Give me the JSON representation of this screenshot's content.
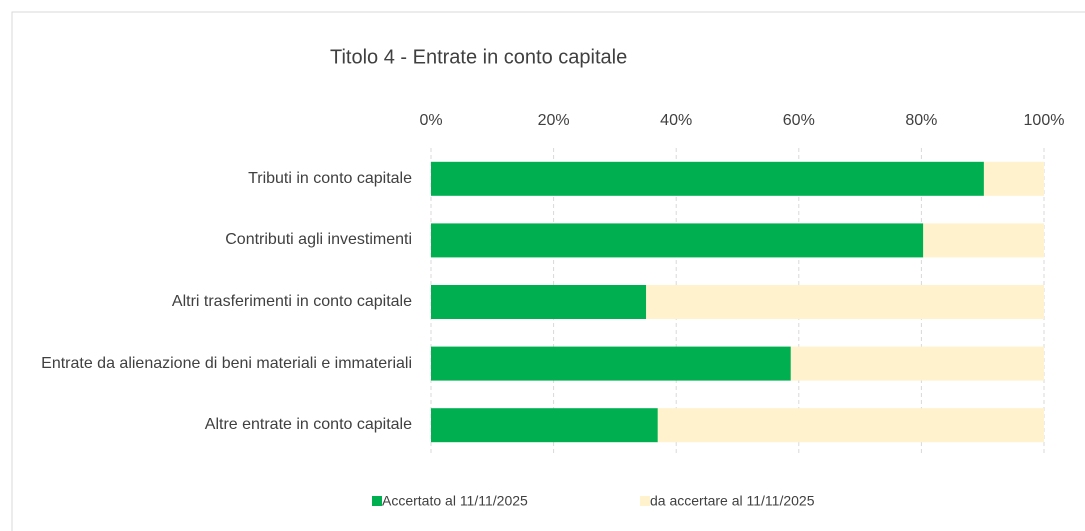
{
  "chart_data": {
    "type": "stacked_barh",
    "title": "Titolo 4 - Entrate in conto capitale",
    "categories": [
      "Tributi in conto capitale",
      "Contributi agli investimenti",
      "Altri trasferimenti in conto capitale",
      "Entrate da alienazione di beni materiali e immateriali",
      "Altre entrate in conto capitale"
    ],
    "series": [
      {
        "name": "Accertato al 11/11/2025",
        "color": "#00b050",
        "values": [
          90.2,
          80.3,
          35.1,
          58.7,
          37.0
        ]
      },
      {
        "name": "da accertare al 11/11/2025",
        "color": "#fff2cc",
        "values": [
          9.8,
          19.7,
          64.9,
          41.3,
          63.0
        ]
      }
    ],
    "xlim": [
      0,
      100
    ],
    "xticks": [
      {
        "value": 0,
        "label": "0%"
      },
      {
        "value": 20,
        "label": "20%"
      },
      {
        "value": 40,
        "label": "40%"
      },
      {
        "value": 60,
        "label": "60%"
      },
      {
        "value": 80,
        "label": "80%"
      },
      {
        "value": 100,
        "label": "100%"
      }
    ],
    "grid": true,
    "legend": "bottom"
  }
}
